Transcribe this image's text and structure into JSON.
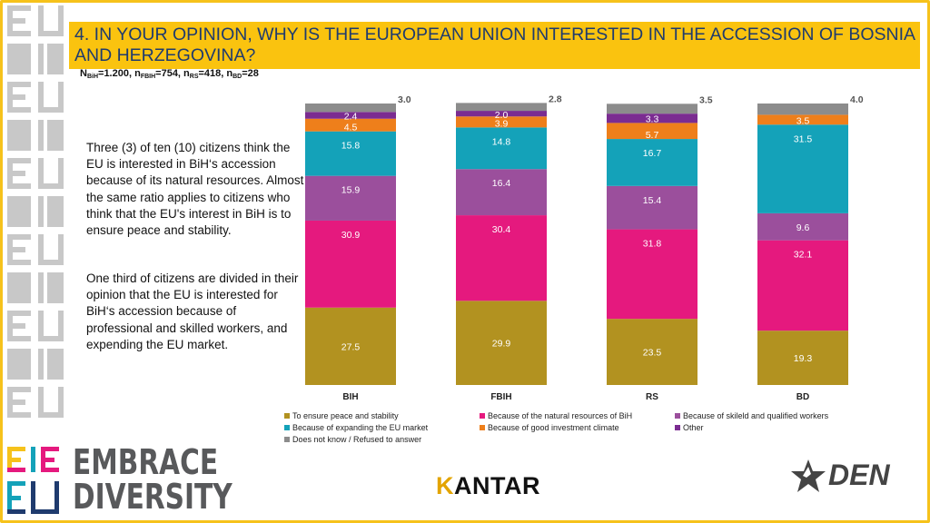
{
  "title": "4. IN YOUR OPINION, WHY IS THE EUROPEAN UNION INTERESTED IN THE ACCESSION OF BOSNIA AND HERZEGOVINA?",
  "sample": {
    "n_bih": "N",
    "n_bih_sub": "BiH",
    "n_bih_val": "=1.200, n",
    "n_fbih_sub": "FBIH",
    "n_fbih_val": "=754, n",
    "n_rs_sub": "RS",
    "n_rs_val": "=418, n",
    "n_bd_sub": "BD",
    "n_bd_val": "=28"
  },
  "notes": [
    "Three (3) of ten (10) citizens think the EU is interested in BiH‘s accession because of its natural resources. Almost the same ratio applies to citizens who think that the EU's interest in BiH is to ensure peace and stability.",
    "One third of citizens are divided in their opinion that the EU is interested for BiH‘s accession because of professional and skilled workers, and expending the EU market."
  ],
  "brand": {
    "left_logo_line1": "EMBRACE",
    "left_logo_line2": "DIVERSITY",
    "kantar_k": "K",
    "kantar_rest": "ANTAR",
    "den": "DEN"
  },
  "chart_data": {
    "type": "bar",
    "stacked": true,
    "categories": [
      "BIH",
      "FBIH",
      "RS",
      "BD"
    ],
    "ylim": [
      0,
      100
    ],
    "grid": false,
    "legend_position": "bottom",
    "series": [
      {
        "name": "To ensure peace and stability",
        "color": "#b29220",
        "values": [
          27.5,
          29.9,
          23.5,
          19.3
        ]
      },
      {
        "name": "Because of the natural resources of BiH",
        "color": "#e5197e",
        "values": [
          30.9,
          30.4,
          31.8,
          32.1
        ]
      },
      {
        "name": "Because of skileld and qualified workers",
        "color": "#9b4f9c",
        "values": [
          15.9,
          16.4,
          15.4,
          9.6
        ]
      },
      {
        "name": "Because of expanding the EU market",
        "color": "#14a2b9",
        "values": [
          15.8,
          14.8,
          16.7,
          31.5
        ]
      },
      {
        "name": "Because of good investment climate",
        "color": "#ee7f1b",
        "values": [
          4.5,
          3.9,
          5.7,
          3.5
        ]
      },
      {
        "name": "Other",
        "color": "#7b2c91",
        "values": [
          2.4,
          2.0,
          3.3,
          0
        ]
      },
      {
        "name": "Does not know / Refused to answer",
        "color": "#8c8c8c",
        "values": [
          3.0,
          2.8,
          3.5,
          4.0
        ]
      }
    ],
    "data_labels": [
      [
        "27.5",
        "30.9",
        "15.9",
        "15.8",
        "4.5",
        "2.4",
        "3.0"
      ],
      [
        "29.9",
        "30.4",
        "16.4",
        "14.8",
        "3.9",
        "2.0",
        "2.8"
      ],
      [
        "23.5",
        "31.8",
        "15.4",
        "16.7",
        "5.7",
        "3.3",
        "3.5"
      ],
      [
        "19.3",
        "32.1",
        "9.6",
        "31.5",
        "3.5",
        "",
        "4.0"
      ]
    ]
  }
}
